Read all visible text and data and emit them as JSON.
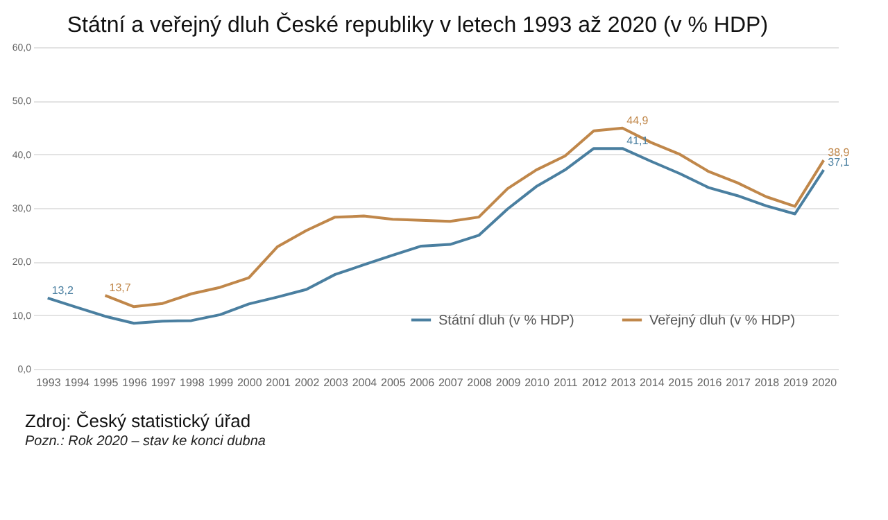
{
  "chart_data": {
    "type": "line",
    "title": "Státní a veřejný dluh České republiky v letech 1993 až 2020 (v % HDP)",
    "categories": [
      "1993",
      "1994",
      "1995",
      "1996",
      "1997",
      "1998",
      "1999",
      "2000",
      "2001",
      "2002",
      "2003",
      "2004",
      "2005",
      "2006",
      "2007",
      "2008",
      "2009",
      "2010",
      "2011",
      "2012",
      "2013",
      "2014",
      "2015",
      "2016",
      "2017",
      "2018",
      "2019",
      "2020"
    ],
    "series": [
      {
        "name": "Státní dluh (v % HDP)",
        "color": "#4a7fa0",
        "values": [
          13.2,
          11.5,
          9.8,
          8.5,
          8.9,
          9.0,
          10.1,
          12.1,
          13.4,
          14.8,
          17.6,
          19.4,
          21.2,
          22.9,
          23.2,
          24.9,
          29.8,
          34.0,
          37.1,
          41.1,
          41.1,
          38.7,
          36.4,
          33.8,
          32.3,
          30.4,
          28.9,
          37.1
        ],
        "value_labels": [
          "13,2",
          null,
          null,
          null,
          null,
          null,
          null,
          null,
          null,
          null,
          null,
          null,
          null,
          null,
          null,
          null,
          null,
          null,
          null,
          null,
          "41,1",
          null,
          null,
          null,
          null,
          null,
          null,
          "37,1"
        ]
      },
      {
        "name": "Veřejný dluh (v % HDP)",
        "color": "#c0874a",
        "values": [
          null,
          null,
          13.7,
          11.6,
          12.2,
          14.0,
          15.2,
          17.0,
          22.8,
          25.8,
          28.3,
          28.5,
          27.9,
          27.7,
          27.5,
          28.3,
          33.6,
          37.1,
          39.7,
          44.4,
          44.9,
          42.2,
          40.0,
          36.8,
          34.7,
          32.1,
          30.3,
          38.9
        ],
        "value_labels": [
          null,
          null,
          "13,7",
          null,
          null,
          null,
          null,
          null,
          null,
          null,
          null,
          null,
          null,
          null,
          null,
          null,
          null,
          null,
          null,
          null,
          "44,9",
          null,
          null,
          null,
          null,
          null,
          null,
          "38,9"
        ]
      }
    ],
    "ylim": [
      0,
      60
    ],
    "yticks": [
      {
        "value": 0,
        "label": "0,0"
      },
      {
        "value": 10,
        "label": "10,0"
      },
      {
        "value": 20,
        "label": "20,0"
      },
      {
        "value": 30,
        "label": "30,0"
      },
      {
        "value": 40,
        "label": "40,0"
      },
      {
        "value": 50,
        "label": "50,0"
      },
      {
        "value": 60,
        "label": "60,0"
      }
    ],
    "grid": "y",
    "legend": "bottom right",
    "marker": "none",
    "line_style": "solid",
    "annotations": [
      "Zdroj: Český statistický úřad",
      "Pozn.: Rok 2020 – stav ke konci dubna"
    ]
  }
}
